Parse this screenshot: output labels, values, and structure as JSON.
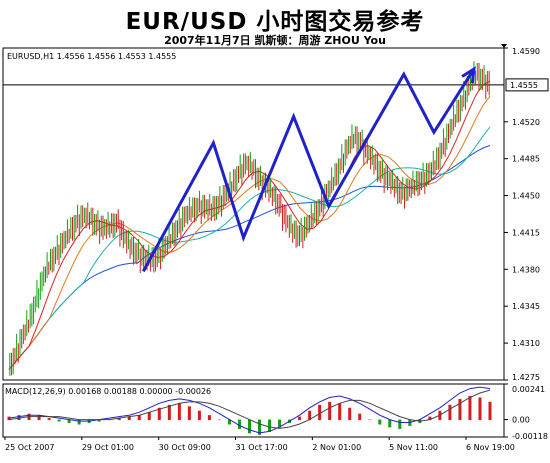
{
  "title": "EUR/USD 小时图交易参考",
  "subtitle": "2007年11月7日   凯斯顿：周游 ZHOU You",
  "chart_data": {
    "type": "candlestick",
    "symbol_info": "EURUSD,H1  1.4556 1.4556 1.4553 1.4555",
    "ohlc": {
      "open": 1.4556,
      "high": 1.4556,
      "low": 1.4553,
      "close": 1.4555
    },
    "current_price_label": "1.4555",
    "y_ticks": [
      "1.4590",
      "1.4520",
      "1.4485",
      "1.4450",
      "1.4415",
      "1.4380",
      "1.4345",
      "1.4310",
      "1.4275"
    ],
    "ylim": [
      1.4275,
      1.459
    ],
    "x_ticks": [
      "25 Oct 2007",
      "29 Oct 01:00",
      "30 Oct 09:00",
      "31 Oct 17:00",
      "2 Nov 01:00",
      "5 Nov 11:00",
      "6 Nov 19:00"
    ],
    "close_path": [
      1.4285,
      1.43,
      1.4315,
      1.433,
      1.435,
      1.437,
      1.4385,
      1.4395,
      1.4405,
      1.4415,
      1.4425,
      1.443,
      1.4428,
      1.4422,
      1.4418,
      1.442,
      1.4425,
      1.441,
      1.44,
      1.4395,
      1.439,
      1.4388,
      1.4392,
      1.44,
      1.441,
      1.442,
      1.443,
      1.4435,
      1.444,
      1.4438,
      1.4436,
      1.4442,
      1.445,
      1.446,
      1.4472,
      1.448,
      1.4475,
      1.4465,
      1.4458,
      1.445,
      1.444,
      1.4425,
      1.4415,
      1.4412,
      1.442,
      1.443,
      1.444,
      1.4452,
      1.4465,
      1.448,
      1.4495,
      1.4505,
      1.45,
      1.449,
      1.448,
      1.4472,
      1.4465,
      1.4458,
      1.4452,
      1.4455,
      1.446,
      1.4465,
      1.447,
      1.448,
      1.4495,
      1.451,
      1.4525,
      1.454,
      1.4555,
      1.4565,
      1.456,
      1.4555
    ],
    "wave_path": [
      {
        "x": 0.28,
        "y": 1.4378
      },
      {
        "x": 0.42,
        "y": 1.45
      },
      {
        "x": 0.48,
        "y": 1.441
      },
      {
        "x": 0.58,
        "y": 1.4525
      },
      {
        "x": 0.65,
        "y": 1.444
      },
      {
        "x": 0.8,
        "y": 1.4565
      },
      {
        "x": 0.86,
        "y": 1.451
      },
      {
        "x": 0.94,
        "y": 1.457
      }
    ],
    "macd": {
      "label": "MACD(12,26,9) 0.00168 0.00188 0.00000 -0.00026",
      "y_ticks": [
        "0.00241",
        "0.00",
        "-0.00118"
      ],
      "ylim": [
        -0.00118,
        0.00241
      ],
      "hist": [
        0.0002,
        0.0003,
        0.0004,
        0.0003,
        0.0001,
        -0.0001,
        -0.0002,
        -0.0003,
        -0.0002,
        -0.0001,
        0.0,
        0.0001,
        0.0002,
        0.0003,
        0.0005,
        0.0008,
        0.001,
        0.0011,
        0.0009,
        0.0006,
        0.0003,
        0.0,
        -0.0003,
        -0.0006,
        -0.0009,
        -0.001,
        -0.0008,
        -0.0005,
        -0.0002,
        0.0002,
        0.0006,
        0.001,
        0.0012,
        0.0011,
        0.0008,
        0.0004,
        0.0,
        -0.0003,
        -0.0005,
        -0.0006,
        -0.0004,
        -0.0002,
        0.0002,
        0.0006,
        0.001,
        0.0014,
        0.0016,
        0.0015,
        0.0012
      ],
      "macd_line": [
        0.0001,
        0.0002,
        0.0003,
        0.0003,
        0.0002,
        0.0001,
        0.0,
        -0.0001,
        -0.0001,
        0.0,
        0.0001,
        0.0002,
        0.0003,
        0.0005,
        0.0008,
        0.0011,
        0.0013,
        0.0014,
        0.0013,
        0.0011,
        0.0008,
        0.0004,
        0.0,
        -0.0004,
        -0.0007,
        -0.0009,
        -0.0008,
        -0.0005,
        -0.0001,
        0.0003,
        0.0008,
        0.0012,
        0.0015,
        0.0016,
        0.0014,
        0.0011,
        0.0007,
        0.0003,
        0.0,
        -0.0002,
        -0.0002,
        0.0,
        0.0004,
        0.0008,
        0.0013,
        0.0018,
        0.0021,
        0.0022,
        0.0021
      ],
      "signal_line": [
        0.0,
        0.0001,
        0.0002,
        0.0002,
        0.0002,
        0.0002,
        0.0001,
        0.0,
        0.0,
        0.0,
        0.0,
        0.0001,
        0.0002,
        0.0003,
        0.0005,
        0.0007,
        0.0009,
        0.0011,
        0.0012,
        0.0012,
        0.0011,
        0.0009,
        0.0006,
        0.0003,
        0.0,
        -0.0003,
        -0.0005,
        -0.0006,
        -0.0005,
        -0.0003,
        0.0,
        0.0004,
        0.0008,
        0.0011,
        0.0013,
        0.0013,
        0.0011,
        0.0008,
        0.0005,
        0.0002,
        0.0,
        -0.0001,
        0.0,
        0.0003,
        0.0007,
        0.0011,
        0.0015,
        0.0018,
        0.002
      ]
    },
    "colors": {
      "wave": "#1f22c8",
      "candle_up": "#12a012",
      "candle_down": "#d21e1e",
      "ma_fast": "#e02020",
      "ma_mid": "#e07a20",
      "ma_slow": "#2050e0",
      "ma_teal": "#20b0a8"
    }
  }
}
